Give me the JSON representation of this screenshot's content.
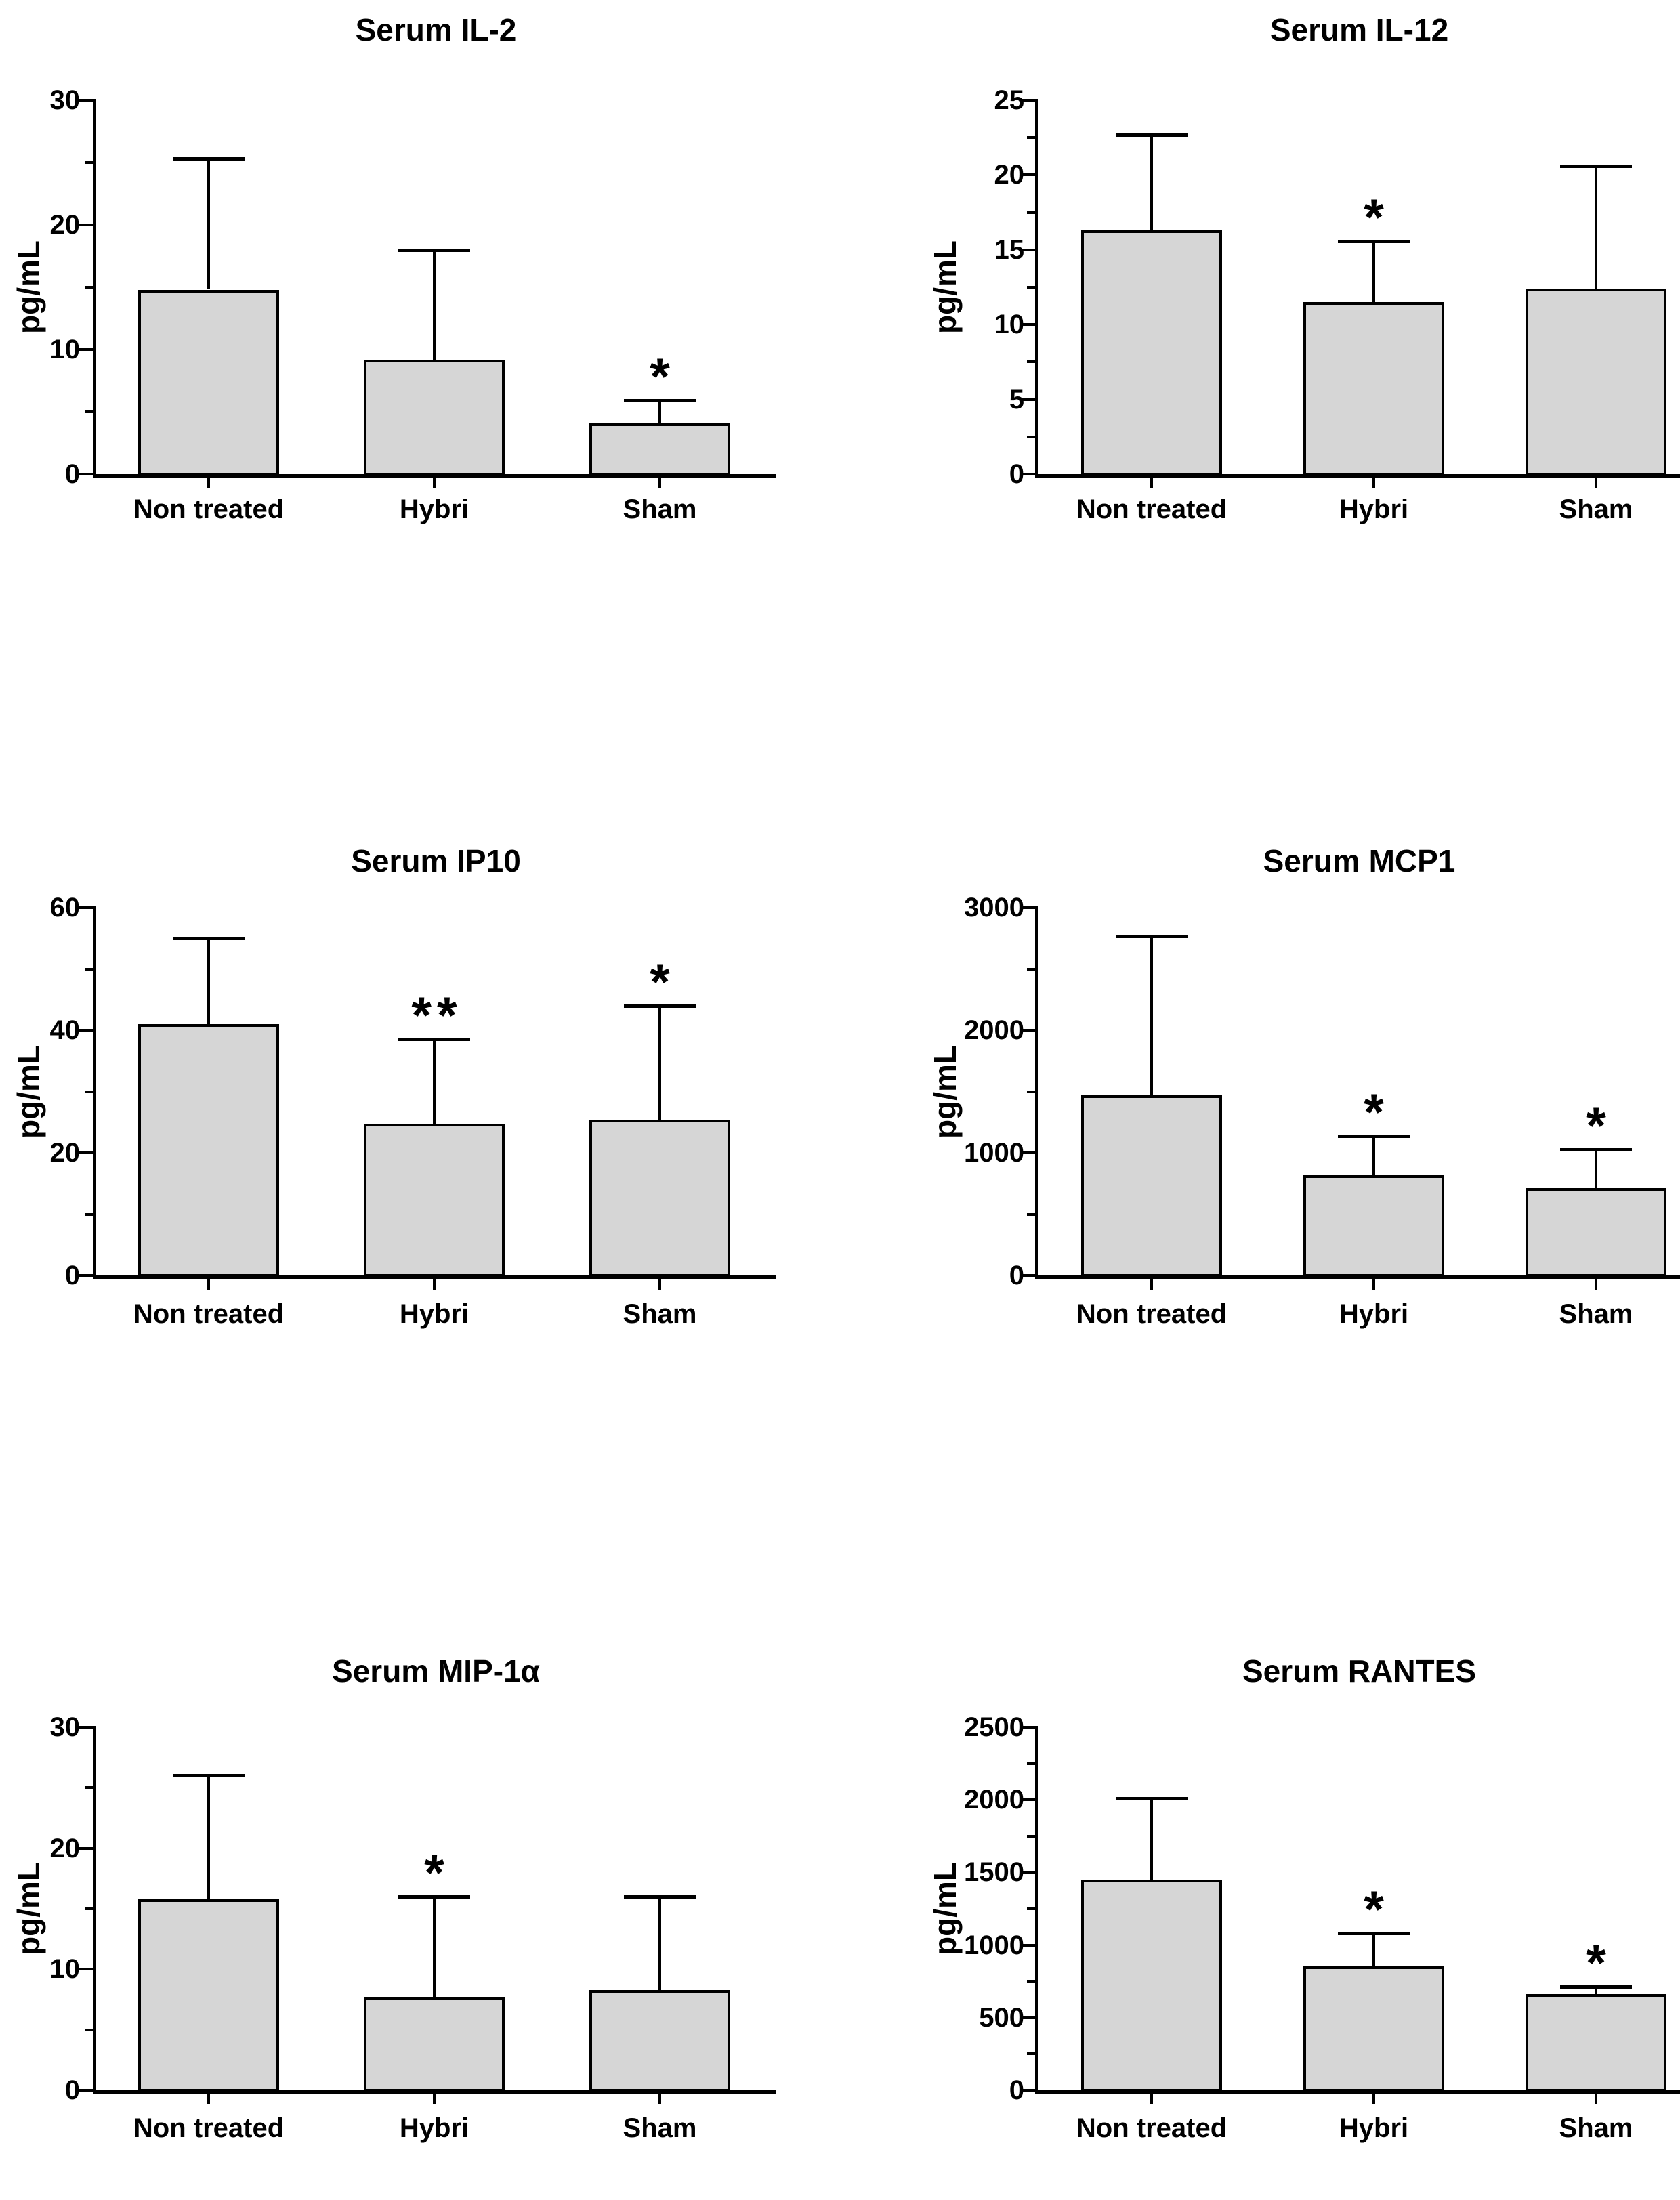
{
  "figure": {
    "background": "#ffffff",
    "text_color": "#000000",
    "bar_fill": "#d6d6d6",
    "bar_border": "#000000",
    "categories": [
      "Non treated",
      "Hybri",
      "Sham"
    ]
  },
  "chart_data": [
    {
      "type": "bar",
      "title": "Serum IL-2",
      "ylabel": "pg/mL",
      "categories": [
        "Non treated",
        "Hybri",
        "Sham"
      ],
      "values": [
        14.8,
        9.2,
        4.1
      ],
      "error_top": [
        25.3,
        18.0,
        5.9
      ],
      "significance": [
        "",
        "",
        "*"
      ],
      "ylim": [
        0,
        30
      ],
      "ytick_interval": 10,
      "yminor_interval": 5,
      "ytick_labels": [
        "0",
        "10",
        "20",
        "30"
      ],
      "grid": false,
      "legend": false
    },
    {
      "type": "bar",
      "title": "Serum IL-12",
      "ylabel": "pg/mL",
      "categories": [
        "Non treated",
        "Hybri",
        "Sham"
      ],
      "values": [
        16.3,
        11.5,
        12.4
      ],
      "error_top": [
        22.7,
        15.6,
        20.6
      ],
      "significance": [
        "",
        "*",
        ""
      ],
      "ylim": [
        0,
        25
      ],
      "ytick_interval": 5,
      "yminor_interval": 2.5,
      "ytick_labels": [
        "0",
        "5",
        "10",
        "15",
        "20",
        "25"
      ],
      "grid": false,
      "legend": false
    },
    {
      "type": "bar",
      "title": "Serum IP10",
      "ylabel": "pg/mL",
      "categories": [
        "Non treated",
        "Hybri",
        "Sham"
      ],
      "values": [
        41.0,
        24.7,
        25.4
      ],
      "error_top": [
        55.0,
        38.6,
        44.0
      ],
      "significance": [
        "",
        "**",
        "*"
      ],
      "ylim": [
        0,
        60
      ],
      "ytick_interval": 20,
      "yminor_interval": 10,
      "ytick_labels": [
        "0",
        "20",
        "40",
        "60"
      ],
      "grid": false,
      "legend": false
    },
    {
      "type": "bar",
      "title": "Serum MCP1",
      "ylabel": "pg/mL",
      "categories": [
        "Non treated",
        "Hybri",
        "Sham"
      ],
      "values": [
        1470,
        815,
        710
      ],
      "error_top": [
        2770,
        1140,
        1025
      ],
      "significance": [
        "",
        "*",
        "*"
      ],
      "ylim": [
        0,
        3000
      ],
      "ytick_interval": 1000,
      "yminor_interval": 500,
      "ytick_labels": [
        "0",
        "1000",
        "2000",
        "3000"
      ],
      "grid": false,
      "legend": false
    },
    {
      "type": "bar",
      "title": "Serum MIP-1α",
      "ylabel": "pg/mL",
      "categories": [
        "Non treated",
        "Hybri",
        "Sham"
      ],
      "values": [
        15.8,
        7.7,
        8.3
      ],
      "error_top": [
        26.0,
        16.0,
        16.0
      ],
      "significance": [
        "",
        "*",
        ""
      ],
      "ylim": [
        0,
        30
      ],
      "ytick_interval": 10,
      "yminor_interval": 5,
      "ytick_labels": [
        "0",
        "10",
        "20",
        "30"
      ],
      "grid": false,
      "legend": false
    },
    {
      "type": "bar",
      "title": "Serum RANTES",
      "ylabel": "pg/mL",
      "categories": [
        "Non treated",
        "Hybri",
        "Sham"
      ],
      "values": [
        1450,
        855,
        660
      ],
      "error_top": [
        2010,
        1080,
        715
      ],
      "significance": [
        "",
        "*",
        "*"
      ],
      "ylim": [
        0,
        2500
      ],
      "ytick_interval": 500,
      "yminor_interval": 250,
      "ytick_labels": [
        "0",
        "500",
        "1000",
        "1500",
        "2000",
        "2500"
      ],
      "grid": false,
      "legend": false
    }
  ]
}
